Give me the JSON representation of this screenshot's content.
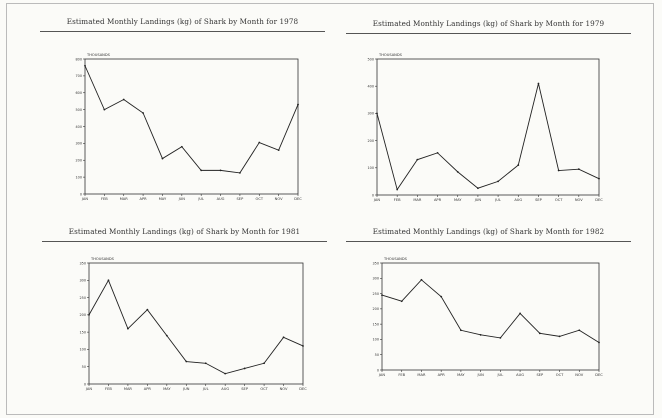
{
  "chart_data": [
    {
      "type": "line",
      "title": "Estimated Monthly Landings (kg) of Shark by Month for 1978",
      "unit_label": "THOUSANDS",
      "categories": [
        "JAN",
        "FEB",
        "MAR",
        "APR",
        "MAY",
        "JUN",
        "JUL",
        "AUG",
        "SEP",
        "OCT",
        "NOV",
        "DEC"
      ],
      "y_ticks": [
        "800",
        "700",
        "600",
        "500",
        "400",
        "300",
        "200",
        "100",
        "0"
      ],
      "ylim": [
        0,
        800
      ],
      "values": [
        760,
        500,
        560,
        480,
        210,
        280,
        140,
        140,
        125,
        305,
        260,
        530
      ],
      "grid": false
    },
    {
      "type": "line",
      "title": "Estimated Monthly Landings (kg) of Shark by Month for 1979",
      "unit_label": "THOUSANDS",
      "categories": [
        "JAN",
        "FEB",
        "MAR",
        "APR",
        "MAY",
        "JUN",
        "JUL",
        "AUG",
        "SEP",
        "OCT",
        "NOV",
        "DEC"
      ],
      "y_ticks": [
        "500",
        "400",
        "300",
        "200",
        "100",
        "0"
      ],
      "ylim": [
        0,
        500
      ],
      "values": [
        300,
        20,
        130,
        155,
        85,
        25,
        50,
        110,
        410,
        90,
        95,
        60
      ],
      "grid": false
    },
    {
      "type": "line",
      "title": "Estimated Monthly Landings (kg) of Shark by Month for 1981",
      "unit_label": "THOUSANDS",
      "categories": [
        "JAN",
        "FEB",
        "MAR",
        "APR",
        "MAY",
        "JUN",
        "JUL",
        "AUG",
        "SEP",
        "OCT",
        "NOV",
        "DEC"
      ],
      "y_ticks": [
        "350",
        "300",
        "250",
        "200",
        "150",
        "100",
        "50",
        "0"
      ],
      "ylim": [
        0,
        350
      ],
      "values": [
        200,
        300,
        160,
        215,
        140,
        65,
        60,
        30,
        45,
        60,
        135,
        110
      ],
      "grid": false
    },
    {
      "type": "line",
      "title": "Estimated Monthly Landings (kg) of Shark by Month for 1982",
      "unit_label": "THOUSANDS",
      "categories": [
        "JAN",
        "FEB",
        "MAR",
        "APR",
        "MAY",
        "JUN",
        "JUL",
        "AUG",
        "SEP",
        "OCT",
        "NOV",
        "DEC"
      ],
      "y_ticks": [
        "350",
        "300",
        "250",
        "200",
        "150",
        "100",
        "50",
        "0"
      ],
      "ylim": [
        0,
        350
      ],
      "values": [
        245,
        225,
        295,
        240,
        130,
        115,
        105,
        185,
        120,
        110,
        130,
        90
      ],
      "grid": false
    }
  ]
}
